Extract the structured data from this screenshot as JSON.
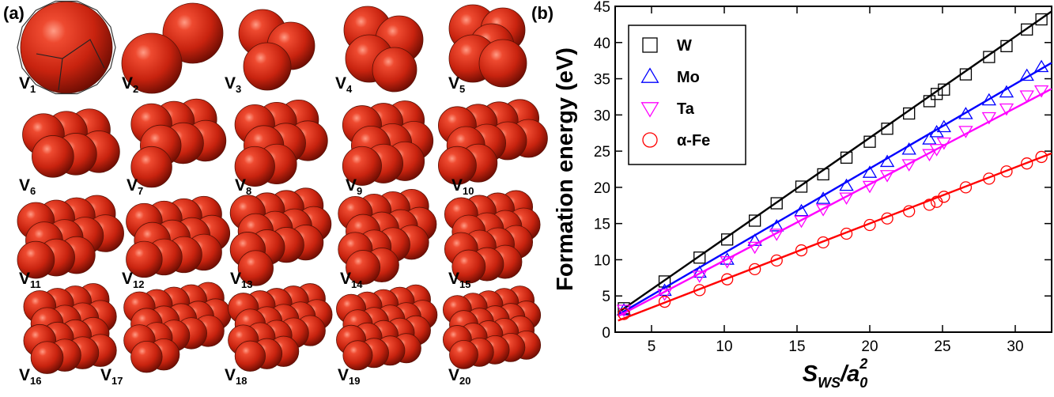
{
  "panel_a": {
    "label": "(a)",
    "clusters": [
      {
        "base": "V",
        "sub": "1"
      },
      {
        "base": "V",
        "sub": "2"
      },
      {
        "base": "V",
        "sub": "3"
      },
      {
        "base": "V",
        "sub": "4"
      },
      {
        "base": "V",
        "sub": "5"
      },
      {
        "base": "V",
        "sub": "6"
      },
      {
        "base": "V",
        "sub": "7"
      },
      {
        "base": "V",
        "sub": "8"
      },
      {
        "base": "V",
        "sub": "9"
      },
      {
        "base": "V",
        "sub": "10"
      },
      {
        "base": "V",
        "sub": "11"
      },
      {
        "base": "V",
        "sub": "12"
      },
      {
        "base": "V",
        "sub": "13"
      },
      {
        "base": "V",
        "sub": "14"
      },
      {
        "base": "V",
        "sub": "15"
      },
      {
        "base": "V",
        "sub": "16"
      },
      {
        "base": "V",
        "sub": "17"
      },
      {
        "base": "V",
        "sub": "18"
      },
      {
        "base": "V",
        "sub": "19"
      },
      {
        "base": "V",
        "sub": "20"
      }
    ],
    "sphere_color": "#d42a14"
  },
  "panel_b": {
    "label": "(b)",
    "chart_data": {
      "type": "scatter",
      "title": "",
      "ylabel": "Formation energy (eV)",
      "xlabel": {
        "base": "S",
        "base_sub": "WS",
        "slash": "/a",
        "denom_sub": "0",
        "denom_sup": "2"
      },
      "xlim": [
        2.5,
        32.5
      ],
      "ylim": [
        0,
        45
      ],
      "xticks": [
        5,
        10,
        15,
        20,
        25,
        30
      ],
      "yticks": [
        0,
        5,
        10,
        15,
        20,
        25,
        30,
        35,
        40,
        45
      ],
      "grid": false,
      "legend_position": "top-left",
      "x": [
        3.1,
        5.9,
        8.3,
        10.2,
        12.1,
        13.6,
        15.3,
        16.8,
        18.4,
        20.0,
        21.2,
        22.7,
        24.1,
        24.6,
        25.1,
        26.6,
        28.2,
        29.4,
        30.8,
        31.8
      ],
      "series": [
        {
          "name": "W",
          "marker": "square",
          "color": "#000000",
          "values": [
            3.3,
            7.0,
            10.3,
            12.8,
            15.4,
            17.8,
            20.1,
            21.8,
            24.1,
            26.3,
            28.1,
            30.2,
            31.9,
            32.9,
            33.5,
            35.6,
            38.0,
            39.5,
            41.8,
            43.2
          ],
          "fit": [
            [
              2.7,
              2.7
            ],
            [
              32.5,
              44.3
            ]
          ]
        },
        {
          "name": "Mo",
          "marker": "triangle-up",
          "color": "#0000ff",
          "values": [
            3.0,
            5.7,
            8.2,
            10.0,
            12.6,
            14.6,
            16.7,
            18.4,
            20.2,
            22.0,
            23.5,
            25.2,
            26.6,
            27.6,
            28.3,
            30.1,
            32.0,
            33.1,
            35.4,
            36.6
          ],
          "fit": [
            [
              2.7,
              2.4
            ],
            [
              32.5,
              37.2
            ]
          ]
        },
        {
          "name": "Ta",
          "marker": "triangle-down",
          "color": "#ff00ff",
          "values": [
            3.1,
            5.3,
            7.8,
            9.8,
            11.8,
            13.6,
            15.4,
            17.0,
            18.6,
            20.2,
            21.7,
            23.2,
            24.6,
            25.3,
            26.2,
            27.8,
            29.7,
            30.9,
            32.7,
            33.4
          ],
          "fit": [
            [
              2.7,
              2.2
            ],
            [
              32.5,
              33.6
            ]
          ]
        },
        {
          "name": "α-Fe",
          "marker": "circle",
          "color": "#ff0000",
          "values": [
            2.5,
            4.2,
            5.8,
            7.3,
            8.7,
            9.9,
            11.3,
            12.4,
            13.6,
            14.8,
            15.7,
            16.7,
            17.6,
            18.0,
            18.7,
            20.0,
            21.2,
            22.2,
            23.3,
            24.2
          ],
          "fit": [
            [
              2.7,
              1.6
            ],
            [
              32.5,
              24.7
            ]
          ]
        }
      ]
    }
  }
}
